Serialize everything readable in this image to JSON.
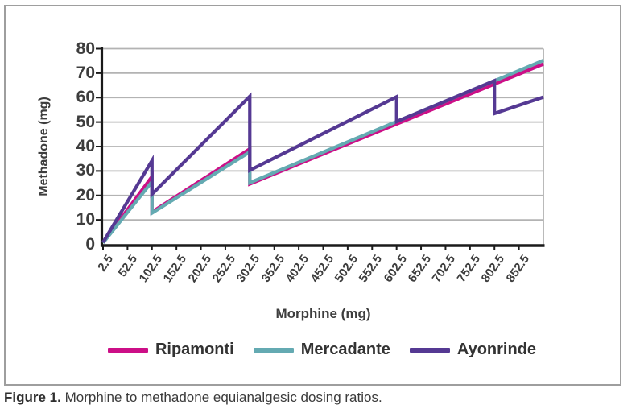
{
  "figure": {
    "caption_prefix": "Figure 1.",
    "caption_text": " Morphine to methadone equianalgesic dosing ratios."
  },
  "chart_data": {
    "type": "line",
    "title": "",
    "xlabel": "Morphine (mg)",
    "ylabel": "Methadone (mg)",
    "xlim": [
      2.5,
      902.5
    ],
    "ylim": [
      0,
      80
    ],
    "y_ticks": [
      0,
      10,
      20,
      30,
      40,
      50,
      60,
      70,
      80
    ],
    "x_tick_labels": [
      "2.5",
      "52.5",
      "102.5",
      "152.5",
      "202.5",
      "252.5",
      "302.5",
      "352.5",
      "402.5",
      "452.5",
      "502.5",
      "552.5",
      "602.5",
      "652.5",
      "702.5",
      "752.5",
      "802.5",
      "852.5"
    ],
    "grid": "horizontal gridlines every 10 mg, gray",
    "legend_position": "bottom",
    "colors": {
      "axis": "#1a1a1a",
      "gridline": "#b3b3b3",
      "plot_border": "#b3b3b3",
      "tick_text": "#3d3d3d"
    },
    "series": [
      {
        "name": "Ripamonti",
        "color": "#cc0f87",
        "points": [
          [
            2.5,
            0.7
          ],
          [
            102.5,
            27.7
          ],
          [
            102.5,
            13.2
          ],
          [
            302.5,
            39.0
          ],
          [
            302.5,
            24.7
          ],
          [
            902.5,
            73.7
          ]
        ]
      },
      {
        "name": "Mercadante",
        "color": "#64aab2",
        "points": [
          [
            2.5,
            0.6
          ],
          [
            102.5,
            25.6
          ],
          [
            102.5,
            12.8
          ],
          [
            302.5,
            37.8
          ],
          [
            302.5,
            25.2
          ],
          [
            902.5,
            75.2
          ]
        ]
      },
      {
        "name": "Ayonrinde",
        "color": "#553993",
        "points": [
          [
            2.5,
            0.8
          ],
          [
            102.5,
            34.2
          ],
          [
            102.5,
            20.5
          ],
          [
            302.5,
            60.5
          ],
          [
            302.5,
            30.3
          ],
          [
            602.5,
            60.3
          ],
          [
            602.5,
            50.2
          ],
          [
            802.5,
            66.9
          ],
          [
            802.5,
            53.5
          ],
          [
            902.5,
            60.2
          ]
        ]
      }
    ]
  }
}
